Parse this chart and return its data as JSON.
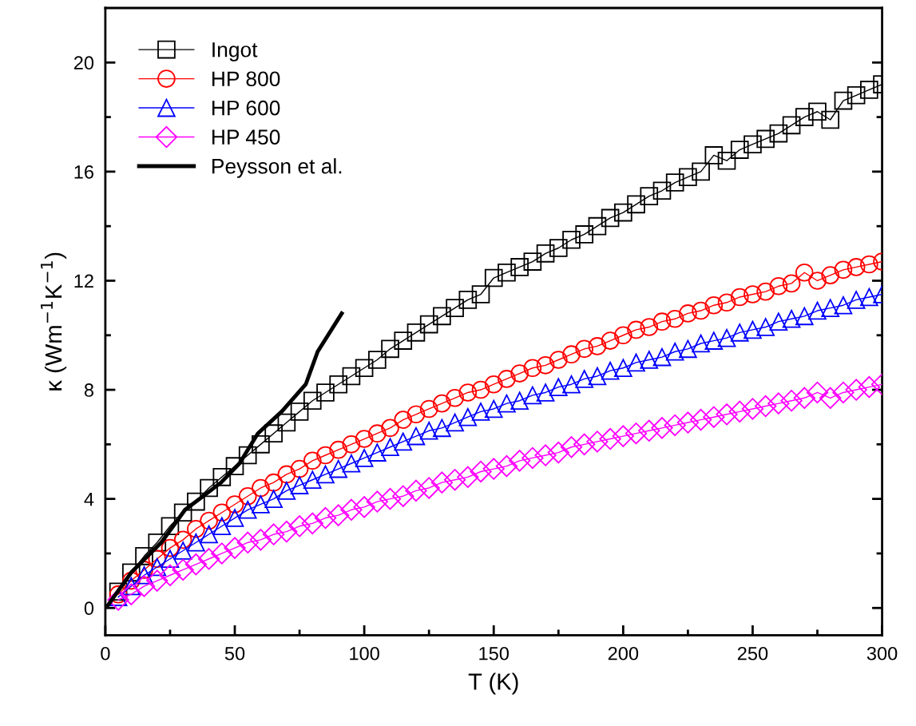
{
  "chart_data": {
    "type": "line",
    "xlabel": "T (K)",
    "ylabel": "κ (Wm$^{−1}$K$^{−1}$)",
    "xlim": [
      0,
      300
    ],
    "ylim": [
      -1,
      22
    ],
    "xticks": [
      0,
      {
        "value": 25,
        "label": null
      },
      50,
      {
        "value": 75,
        "label": null
      },
      100,
      {
        "value": 125,
        "label": null
      },
      150,
      {
        "value": 175,
        "label": null
      },
      200,
      {
        "value": 225,
        "label": null
      },
      250,
      {
        "value": 275,
        "label": null
      },
      300
    ],
    "yticks": [
      0,
      {
        "value": 2,
        "label": null
      },
      4,
      {
        "value": 6,
        "label": null
      },
      8,
      {
        "value": 10,
        "label": null
      },
      12,
      {
        "value": 14,
        "label": null
      },
      16,
      {
        "value": 18,
        "label": null
      },
      20
    ],
    "grid": false,
    "legend": "top left",
    "x": [
      5,
      10,
      15,
      20,
      25,
      30,
      35,
      40,
      45,
      50,
      55,
      60,
      65,
      70,
      75,
      80,
      85,
      90,
      95,
      100,
      105,
      110,
      115,
      120,
      125,
      130,
      135,
      140,
      145,
      150,
      155,
      160,
      165,
      170,
      175,
      180,
      185,
      190,
      195,
      200,
      205,
      210,
      215,
      220,
      225,
      230,
      235,
      240,
      245,
      250,
      255,
      260,
      265,
      270,
      275,
      280,
      285,
      290,
      295,
      300
    ],
    "series": [
      {
        "name": "Ingot",
        "color": "#000000",
        "marker": "square",
        "values": [
          0.6,
          1.3,
          1.9,
          2.4,
          3.0,
          3.5,
          3.9,
          4.4,
          4.8,
          5.2,
          5.6,
          6.0,
          6.4,
          6.8,
          7.2,
          7.6,
          7.9,
          8.2,
          8.5,
          8.8,
          9.1,
          9.5,
          9.8,
          10.1,
          10.4,
          10.7,
          11.0,
          11.3,
          11.5,
          12.1,
          12.3,
          12.5,
          12.7,
          13.0,
          13.2,
          13.5,
          13.7,
          14.0,
          14.3,
          14.5,
          14.8,
          15.1,
          15.3,
          15.6,
          15.8,
          16.0,
          16.6,
          16.4,
          16.8,
          17.0,
          17.2,
          17.4,
          17.7,
          18.0,
          18.2,
          17.9,
          18.6,
          18.8,
          19.0,
          19.2
        ]
      },
      {
        "name": "HP 800",
        "color": "#ff0000",
        "marker": "circle",
        "values": [
          0.5,
          1.0,
          1.4,
          1.8,
          2.2,
          2.5,
          2.9,
          3.2,
          3.5,
          3.8,
          4.1,
          4.4,
          4.6,
          4.9,
          5.1,
          5.4,
          5.6,
          5.8,
          6.0,
          6.2,
          6.4,
          6.6,
          6.9,
          7.1,
          7.3,
          7.5,
          7.7,
          7.9,
          8.0,
          8.2,
          8.4,
          8.6,
          8.8,
          8.9,
          9.1,
          9.3,
          9.5,
          9.6,
          9.8,
          10.0,
          10.2,
          10.3,
          10.5,
          10.6,
          10.8,
          10.9,
          11.1,
          11.2,
          11.4,
          11.5,
          11.6,
          11.8,
          11.9,
          12.3,
          12.0,
          12.2,
          12.4,
          12.5,
          12.6,
          12.7
        ]
      },
      {
        "name": "HP 600",
        "color": "#0000ff",
        "marker": "triangle",
        "values": [
          0.4,
          0.8,
          1.2,
          1.5,
          1.8,
          2.1,
          2.4,
          2.7,
          3.0,
          3.3,
          3.6,
          3.8,
          4.0,
          4.3,
          4.5,
          4.7,
          4.9,
          5.1,
          5.3,
          5.5,
          5.7,
          5.9,
          6.1,
          6.3,
          6.5,
          6.6,
          6.8,
          7.0,
          7.2,
          7.3,
          7.5,
          7.6,
          7.8,
          7.9,
          8.1,
          8.2,
          8.4,
          8.5,
          8.7,
          8.8,
          9.0,
          9.1,
          9.2,
          9.4,
          9.5,
          9.7,
          9.8,
          9.9,
          10.1,
          10.2,
          10.3,
          10.5,
          10.6,
          10.7,
          10.9,
          11.0,
          11.1,
          11.3,
          11.4,
          11.5
        ]
      },
      {
        "name": "HP 450",
        "color": "#ff00ff",
        "marker": "diamond",
        "values": [
          0.3,
          0.5,
          0.8,
          1.0,
          1.2,
          1.4,
          1.6,
          1.8,
          2.0,
          2.2,
          2.4,
          2.5,
          2.7,
          2.8,
          3.0,
          3.1,
          3.3,
          3.4,
          3.6,
          3.7,
          3.9,
          4.0,
          4.1,
          4.3,
          4.4,
          4.6,
          4.7,
          4.8,
          5.0,
          5.1,
          5.2,
          5.4,
          5.5,
          5.6,
          5.7,
          5.9,
          6.0,
          6.1,
          6.2,
          6.3,
          6.4,
          6.5,
          6.6,
          6.7,
          6.8,
          6.9,
          7.0,
          7.1,
          7.2,
          7.3,
          7.4,
          7.5,
          7.6,
          7.7,
          7.9,
          7.7,
          7.9,
          8.0,
          8.1,
          8.2
        ]
      },
      {
        "name": "Peysson et al.",
        "color": "#000000",
        "marker": "none",
        "x": [
          1,
          10,
          21.6,
          30.8,
          44.7,
          51.8,
          58.9,
          68.1,
          77.4,
          82,
          91.3
        ],
        "values": [
          0.1,
          1.3,
          2.4,
          3.6,
          4.6,
          5.3,
          6.4,
          7.2,
          8.2,
          9.4,
          10.8
        ]
      }
    ]
  }
}
